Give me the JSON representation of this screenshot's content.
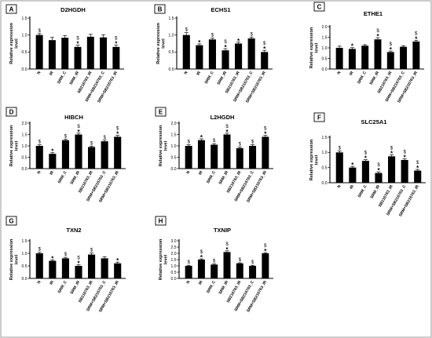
{
  "figure": {
    "y_axis_label_lines": [
      "Relative expression",
      "level"
    ],
    "star_glyph": "*",
    "dollar_glyph": "$"
  },
  "chart_data": [
    {
      "panel": "A",
      "type": "bar",
      "title": "D2HGDH",
      "categories": [
        "N",
        "IR",
        "SRM_C",
        "SRM_IR",
        "SB216763_IR",
        "SRM+SB216763_C",
        "SRM+SB216763_IR"
      ],
      "values": [
        1.0,
        0.85,
        0.92,
        0.65,
        0.95,
        0.93,
        0.65
      ],
      "errors": [
        0.04,
        0.08,
        0.06,
        0.05,
        0.07,
        0.08,
        0.05
      ],
      "annotations": [
        [
          "$"
        ],
        [],
        [],
        [
          "$",
          "*"
        ],
        [],
        [],
        [
          "$",
          "*"
        ]
      ],
      "ylim": [
        0,
        1.5
      ],
      "yticks": [
        0.0,
        0.5,
        1.0,
        1.5
      ],
      "tick_decimals": 1
    },
    {
      "panel": "B",
      "type": "bar",
      "title": "ECHS1",
      "categories": [
        "N",
        "IR",
        "SRM_C",
        "SRM_IR",
        "SB216763_IR",
        "SRM+SB216763_C",
        "SRM+SB216763_IR"
      ],
      "values": [
        1.0,
        0.7,
        0.87,
        0.55,
        0.75,
        0.9,
        0.5
      ],
      "errors": [
        0.07,
        0.04,
        0.04,
        0.05,
        0.04,
        0.04,
        0.05
      ],
      "annotations": [
        [
          "$"
        ],
        [
          "*"
        ],
        [
          "$"
        ],
        [
          "$",
          "*"
        ],
        [
          "*"
        ],
        [
          "$"
        ],
        [
          "$",
          "*"
        ]
      ],
      "ylim": [
        0,
        1.5
      ],
      "yticks": [
        0.0,
        0.5,
        1.0,
        1.5
      ],
      "tick_decimals": 1
    },
    {
      "panel": "C",
      "type": "bar",
      "title": "ETHE1",
      "categories": [
        "N",
        "IR",
        "SRM_C",
        "SRM_IR",
        "SB216763_IR",
        "SRM+SB216763_C",
        "SRM+SB216763_IR"
      ],
      "values": [
        1.0,
        0.95,
        1.1,
        1.4,
        0.8,
        1.05,
        1.3
      ],
      "errors": [
        0.08,
        0.06,
        0.05,
        0.08,
        0.05,
        0.05,
        0.06
      ],
      "annotations": [
        [],
        [
          "*"
        ],
        [],
        [
          "$",
          "*"
        ],
        [
          "$",
          "*"
        ],
        [],
        [
          "$",
          "*"
        ]
      ],
      "ylim": [
        0,
        2.0
      ],
      "yticks": [
        0.0,
        0.5,
        1.0,
        1.5,
        2.0
      ],
      "tick_decimals": 1
    },
    {
      "panel": "D",
      "type": "bar",
      "title": "HIBCH",
      "categories": [
        "N",
        "IR",
        "SRM_C",
        "SRM_IR",
        "SB216763_IR",
        "SRM+SB216763_C",
        "SRM+SB216763_IR"
      ],
      "values": [
        1.0,
        0.65,
        1.25,
        1.5,
        0.95,
        1.2,
        1.4
      ],
      "errors": [
        0.05,
        0.05,
        0.05,
        0.06,
        0.04,
        0.05,
        0.06
      ],
      "annotations": [
        [
          "$"
        ],
        [
          "*"
        ],
        [
          "$"
        ],
        [
          "$",
          "*"
        ],
        [
          "$"
        ],
        [
          "$"
        ],
        [
          "$",
          "*"
        ]
      ],
      "ylim": [
        0,
        2.0
      ],
      "yticks": [
        0.0,
        0.5,
        1.0,
        1.5,
        2.0
      ],
      "tick_decimals": 1
    },
    {
      "panel": "E",
      "type": "bar",
      "title": "L2HGDH",
      "categories": [
        "N",
        "IR",
        "SRM_C",
        "SRM_IR",
        "SB216763_IR",
        "SRM+SB216763_C",
        "SRM+SB216763_IR"
      ],
      "values": [
        1.0,
        1.25,
        1.05,
        1.5,
        0.9,
        1.0,
        1.4
      ],
      "errors": [
        0.05,
        0.06,
        0.05,
        0.06,
        0.05,
        0.05,
        0.06
      ],
      "annotations": [
        [
          "$"
        ],
        [
          "*"
        ],
        [
          "$"
        ],
        [
          "$",
          "*"
        ],
        [
          "$"
        ],
        [
          "$"
        ],
        [
          "$",
          "*"
        ]
      ],
      "ylim": [
        0,
        2.0
      ],
      "yticks": [
        0.0,
        0.5,
        1.0,
        1.5,
        2.0
      ],
      "tick_decimals": 1
    },
    {
      "panel": "F",
      "type": "bar",
      "title": "SLC25A1",
      "categories": [
        "N",
        "IR",
        "SRM_C",
        "SRM_IR",
        "SB216763_IR",
        "SRM+SB216763_C",
        "SRM+SB216763_IR"
      ],
      "values": [
        1.0,
        0.5,
        0.72,
        0.32,
        0.87,
        0.75,
        0.4
      ],
      "errors": [
        0.05,
        0.04,
        0.04,
        0.04,
        0.05,
        0.04,
        0.04
      ],
      "annotations": [
        [
          "$"
        ],
        [
          "*"
        ],
        [
          "$",
          "*"
        ],
        [
          "$",
          "*"
        ],
        [
          "$",
          "*"
        ],
        [
          "$",
          "*"
        ],
        [
          "$",
          "*"
        ]
      ],
      "ylim": [
        0,
        1.5
      ],
      "yticks": [
        0.0,
        0.5,
        1.0,
        1.5
      ],
      "tick_decimals": 1
    },
    {
      "panel": "G",
      "type": "bar",
      "title": "TXN2",
      "categories": [
        "N",
        "IR",
        "SRM_C",
        "SRM_IR",
        "SB216763_IR",
        "SRM+SB216763_C",
        "SRM+SB216763_IR"
      ],
      "values": [
        1.0,
        0.7,
        0.8,
        0.5,
        0.95,
        0.8,
        0.6
      ],
      "errors": [
        0.04,
        0.04,
        0.04,
        0.04,
        0.06,
        0.06,
        0.05
      ],
      "annotations": [
        [
          "$"
        ],
        [
          "*"
        ],
        [
          "$"
        ],
        [
          "$",
          "*"
        ],
        [
          "$"
        ],
        [],
        [
          "*"
        ]
      ],
      "ylim": [
        0,
        1.5
      ],
      "yticks": [
        0.0,
        0.5,
        1.0,
        1.5
      ],
      "tick_decimals": 1
    },
    {
      "panel": "H",
      "type": "bar",
      "title": "TXNIP",
      "categories": [
        "N",
        "IR",
        "SRM_C",
        "SRM_IR",
        "SB216763_IR",
        "SRM+SB216763_C",
        "SRM+SB216763_IR"
      ],
      "values": [
        1.0,
        1.5,
        1.1,
        2.1,
        1.2,
        1.0,
        2.0
      ],
      "errors": [
        0.05,
        0.06,
        0.05,
        0.1,
        0.05,
        0.05,
        0.06
      ],
      "annotations": [
        [
          "$"
        ],
        [
          "$",
          "*"
        ],
        [
          "$"
        ],
        [
          "$",
          "*"
        ],
        [
          "$"
        ],
        [
          "$"
        ],
        [
          "$",
          "*"
        ]
      ],
      "ylim": [
        0,
        3.0
      ],
      "yticks": [
        0.0,
        0.5,
        1.0,
        1.5,
        2.0,
        2.5,
        3.0
      ],
      "tick_decimals": 1
    }
  ]
}
